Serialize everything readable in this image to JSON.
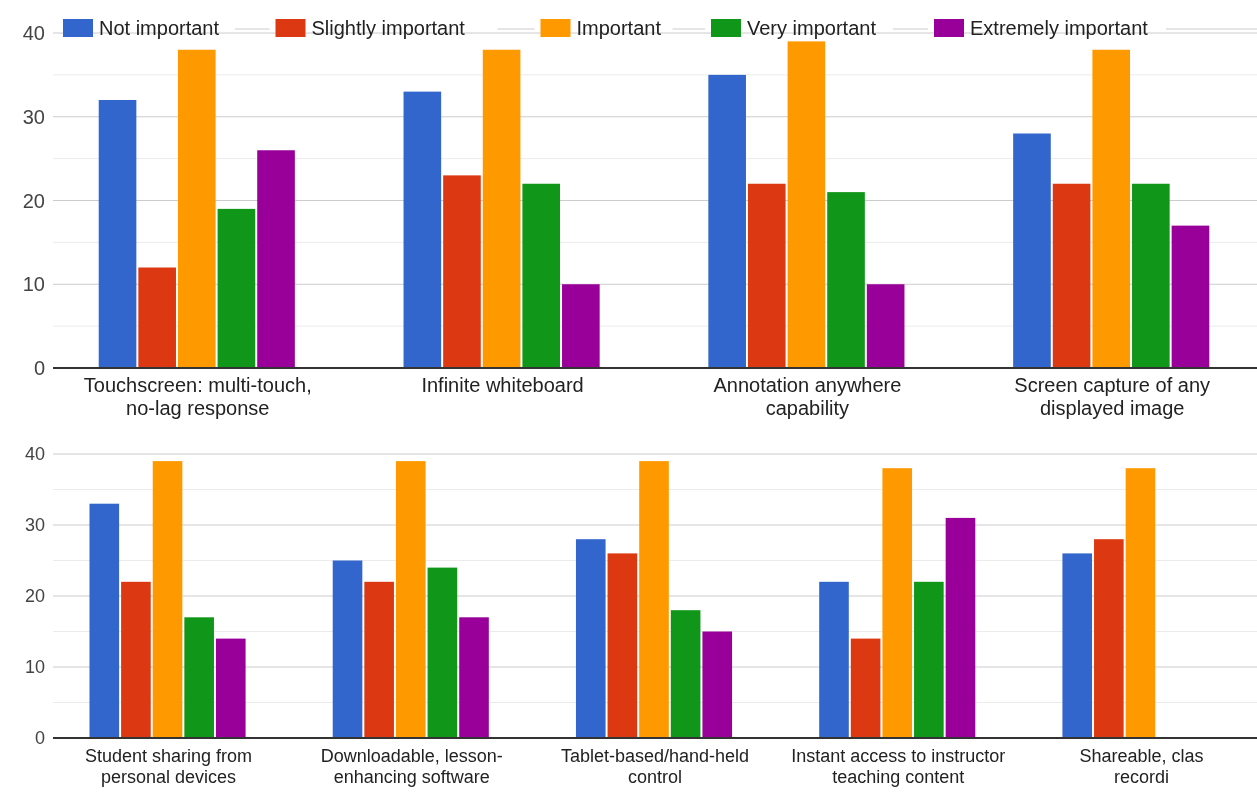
{
  "chart_data": [
    {
      "type": "bar",
      "categories": [
        "Touchscreen: multi-touch,\nno-lag response",
        "Infinite whiteboard",
        "Annotation anywhere\ncapability",
        "Screen capture of any\ndisplayed image"
      ],
      "series": [
        {
          "name": "Not important",
          "color": "#3366cc",
          "values": [
            32,
            33,
            35,
            28
          ]
        },
        {
          "name": "Slightly important",
          "color": "#dc3912",
          "values": [
            12,
            23,
            22,
            22
          ]
        },
        {
          "name": "Important",
          "color": "#ff9900",
          "values": [
            38,
            38,
            39,
            38
          ]
        },
        {
          "name": "Very important",
          "color": "#109618",
          "values": [
            19,
            22,
            21,
            22
          ]
        },
        {
          "name": "Extremely important",
          "color": "#990099",
          "values": [
            26,
            10,
            10,
            17
          ]
        }
      ],
      "ylim": [
        0,
        40
      ],
      "yticks": [
        0,
        {
          "value": 5,
          "label": null
        },
        10,
        {
          "value": 15,
          "label": null
        },
        20,
        {
          "value": 25,
          "label": null
        },
        30,
        {
          "value": 35,
          "label": null
        },
        40
      ],
      "grid": true,
      "legend": "top"
    },
    {
      "type": "bar",
      "categories": [
        "Student sharing from\npersonal devices",
        "Downloadable, lesson-\nenhancing software",
        "Tablet-based/hand-held\ncontrol",
        "Instant access to instructor\nteaching content",
        "Shareable, clas\nrecordi"
      ],
      "series": [
        {
          "color": "#3366cc",
          "values": [
            33,
            25,
            28,
            22,
            26
          ]
        },
        {
          "color": "#dc3912",
          "values": [
            22,
            22,
            26,
            14,
            28
          ]
        },
        {
          "color": "#ff9900",
          "values": [
            39,
            39,
            39,
            38,
            38
          ]
        },
        {
          "color": "#109618",
          "values": [
            17,
            24,
            18,
            22,
            null
          ]
        },
        {
          "color": "#990099",
          "values": [
            14,
            17,
            15,
            31,
            null
          ]
        }
      ],
      "ylim": [
        0,
        40
      ],
      "yticks": [
        0,
        {
          "value": 5,
          "label": null
        },
        10,
        {
          "value": 15,
          "label": null
        },
        20,
        {
          "value": 25,
          "label": null
        },
        30,
        {
          "value": 35,
          "label": null
        },
        40
      ],
      "grid": true
    }
  ]
}
